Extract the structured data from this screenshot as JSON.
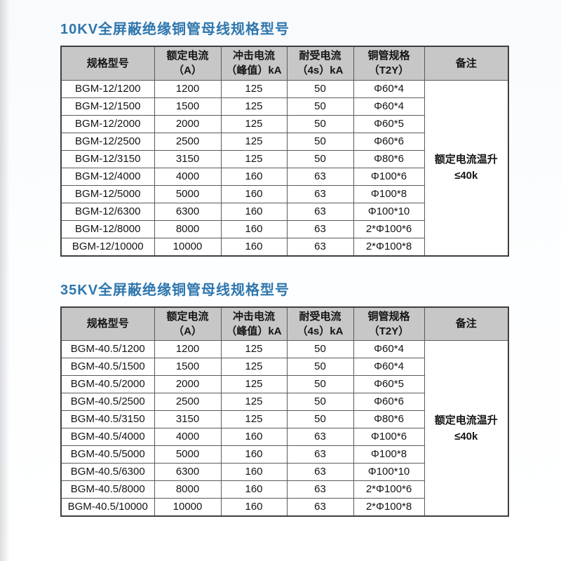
{
  "colors": {
    "title_blue": "#2e76ad",
    "header_bg": "#c7c7c7",
    "border_dark": "#3f3f3f",
    "border_inner": "#5a5a5a",
    "text": "#141414"
  },
  "sections": [
    {
      "title": "10KV全屏蔽绝缘铜管母线规格型号",
      "headers": [
        {
          "lines": [
            "规格型号"
          ]
        },
        {
          "lines": [
            "额定电流",
            "（A）"
          ]
        },
        {
          "lines": [
            "冲击电流",
            "（峰值）kA"
          ]
        },
        {
          "lines": [
            "耐受电流",
            "（4s）kA"
          ]
        },
        {
          "lines": [
            "铜管规格",
            "（T2Y）"
          ]
        },
        {
          "lines": [
            "备注"
          ]
        }
      ],
      "rows": [
        [
          "BGM-12/1200",
          "1200",
          "125",
          "50",
          "Φ60*4"
        ],
        [
          "BGM-12/1500",
          "1500",
          "125",
          "50",
          "Φ60*4"
        ],
        [
          "BGM-12/2000",
          "2000",
          "125",
          "50",
          "Φ60*5"
        ],
        [
          "BGM-12/2500",
          "2500",
          "125",
          "50",
          "Φ60*6"
        ],
        [
          "BGM-12/3150",
          "3150",
          "125",
          "50",
          "Φ80*6"
        ],
        [
          "BGM-12/4000",
          "4000",
          "160",
          "63",
          "Φ100*6"
        ],
        [
          "BGM-12/5000",
          "5000",
          "160",
          "63",
          "Φ100*8"
        ],
        [
          "BGM-12/6300",
          "6300",
          "160",
          "63",
          "Φ100*10"
        ],
        [
          "BGM-12/8000",
          "8000",
          "160",
          "63",
          "2*Φ100*6"
        ],
        [
          "BGM-12/10000",
          "10000",
          "160",
          "63",
          "2*Φ100*8"
        ]
      ],
      "remark_lines": [
        "额定电流温升",
        "≤40k"
      ]
    },
    {
      "title": "35KV全屏蔽绝缘铜管母线规格型号",
      "headers": [
        {
          "lines": [
            "规格型号"
          ]
        },
        {
          "lines": [
            "额定电流",
            "（A）"
          ]
        },
        {
          "lines": [
            "冲击电流",
            "（峰值）kA"
          ]
        },
        {
          "lines": [
            "耐受电流",
            "（4s）kA"
          ]
        },
        {
          "lines": [
            "铜管规格",
            "（T2Y）"
          ]
        },
        {
          "lines": [
            "备注"
          ]
        }
      ],
      "rows": [
        [
          "BGM-40.5/1200",
          "1200",
          "125",
          "50",
          "Φ60*4"
        ],
        [
          "BGM-40.5/1500",
          "1500",
          "125",
          "50",
          "Φ60*4"
        ],
        [
          "BGM-40.5/2000",
          "2000",
          "125",
          "50",
          "Φ60*5"
        ],
        [
          "BGM-40.5/2500",
          "2500",
          "125",
          "50",
          "Φ60*6"
        ],
        [
          "BGM-40.5/3150",
          "3150",
          "125",
          "50",
          "Φ80*6"
        ],
        [
          "BGM-40.5/4000",
          "4000",
          "160",
          "63",
          "Φ100*6"
        ],
        [
          "BGM-40.5/5000",
          "5000",
          "160",
          "63",
          "Φ100*8"
        ],
        [
          "BGM-40.5/6300",
          "6300",
          "160",
          "63",
          "Φ100*10"
        ],
        [
          "BGM-40.5/8000",
          "8000",
          "160",
          "63",
          "2*Φ100*6"
        ],
        [
          "BGM-40.5/10000",
          "10000",
          "160",
          "63",
          "2*Φ100*8"
        ]
      ],
      "remark_lines": [
        "额定电流温升",
        "≤40k"
      ]
    }
  ]
}
